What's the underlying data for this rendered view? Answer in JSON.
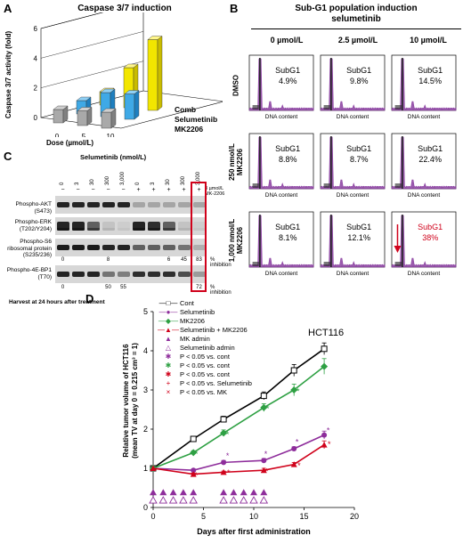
{
  "panel_A": {
    "letter": "A",
    "title": "Caspase 3/7 induction",
    "ylabel": "Caspase 3/7 activity (fold)",
    "xlabel": "Dose (µmol/L)",
    "yticks": [
      "0",
      "2",
      "4",
      "6"
    ],
    "xticks": [
      "0",
      "5",
      "10"
    ],
    "row_labels": [
      "Comb",
      "Selumetinib",
      "MK2206"
    ]
  },
  "panel_B": {
    "letter": "B",
    "title_line1": "Sub-G1 population induction",
    "title_line2": "selumetinib",
    "col_headers": [
      "0 µmol/L",
      "2.5 µmol/L",
      "10 µmol/L"
    ],
    "row_headers": [
      "DMSO",
      "250 nmol/L MK2206",
      "1,000 nmol/L MK2206"
    ],
    "xaxis_label": "DNA content",
    "subg1_label": "SubG1",
    "values": [
      [
        "4.9%",
        "9.8%",
        "14.5%"
      ],
      [
        "8.8%",
        "8.7%",
        "22.4%"
      ],
      [
        "8.1%",
        "12.1%",
        "38%"
      ]
    ],
    "highlight_color": "#d0021b",
    "hist_color": "#8a3fa0"
  },
  "panel_C": {
    "letter": "C",
    "header": "Selumetinib (nmol/L)",
    "doses": [
      "0",
      "3",
      "30",
      "300",
      "3,000",
      "0",
      "3",
      "30",
      "300",
      "3,000"
    ],
    "mk_signs": [
      "−",
      "−",
      "−",
      "−",
      "−",
      "+",
      "+",
      "+",
      "+",
      "+"
    ],
    "mk_label": "3 µmol/L MK-2206",
    "proteins": [
      "Phospho-AKT (S473)",
      "Phospho-ERK (T202/Y204)",
      "Phospho-S6 ribosomal protein (S235/236)",
      "Phospho-4E-BP1 (T70)"
    ],
    "inhibition_row1": [
      "0",
      "",
      "",
      "8",
      "",
      "",
      "",
      "6",
      "45",
      "83"
    ],
    "inhibition_row2": [
      "0",
      "",
      "",
      "50",
      "55",
      "",
      "",
      "",
      "",
      "72"
    ],
    "inhibition_label": "% inhibition",
    "footer": "Harvest at 24 hours after treatment"
  },
  "panel_D": {
    "letter": "D",
    "cell_line": "HCT116",
    "ylabel": "Relative tumor volume of HCT116 (mean TV at day 0 = 0.215 cm³ = 1)",
    "xlabel": "Days after first administration",
    "legend": [
      {
        "label": "Cont"
      },
      {
        "label": "Selumetinib"
      },
      {
        "label": "MK2206"
      },
      {
        "label": "Selumetinib + MK2206"
      },
      {
        "label": "MK admin"
      },
      {
        "label": "Selumetinib admin"
      },
      {
        "label": "P < 0.05 vs. cont"
      },
      {
        "label": "P < 0.05 vs. cont"
      },
      {
        "label": "P < 0.05 vs. cont"
      },
      {
        "label": "P < 0.05 vs. Selumetinib"
      },
      {
        "label": "P < 0.05 vs. MK"
      }
    ]
  },
  "chart_data": [
    {
      "type": "bar",
      "title": "Caspase 3/7 induction",
      "xlabel": "Dose (µmol/L)",
      "ylabel": "Caspase 3/7 activity (fold)",
      "ylim": [
        0,
        6
      ],
      "categories": [
        "0",
        "5",
        "10"
      ],
      "series": [
        {
          "name": "MK2206",
          "values": [
            1.0,
            1.1,
            1.2
          ]
        },
        {
          "name": "Selumetinib",
          "values": [
            1.0,
            1.8,
            1.9
          ]
        },
        {
          "name": "Comb",
          "values": [
            1.0,
            3.0,
            5.3
          ]
        }
      ]
    },
    {
      "type": "line",
      "title": "",
      "xlabel": "Days after first administration",
      "ylabel": "Relative tumor volume of HCT116 (mean TV at day 0 = 0.215 cm³ = 1)",
      "xlim": [
        0,
        20
      ],
      "ylim": [
        0,
        5
      ],
      "x": [
        0,
        4,
        7,
        11,
        14,
        17
      ],
      "series": [
        {
          "name": "Cont",
          "values": [
            1.0,
            1.75,
            2.25,
            2.85,
            3.5,
            4.05
          ],
          "errors": [
            0,
            0.05,
            0.08,
            0.1,
            0.15,
            0.15
          ]
        },
        {
          "name": "Selumetinib",
          "values": [
            1.0,
            0.95,
            1.15,
            1.2,
            1.5,
            1.85
          ],
          "errors": [
            0,
            0.03,
            0.05,
            0.05,
            0.05,
            0.1
          ]
        },
        {
          "name": "MK2206",
          "values": [
            1.0,
            1.4,
            1.9,
            2.55,
            3.0,
            3.6
          ],
          "errors": [
            0,
            0.05,
            0.08,
            0.1,
            0.15,
            0.2
          ]
        },
        {
          "name": "Selumetinib + MK2206",
          "values": [
            1.0,
            0.85,
            0.9,
            0.95,
            1.1,
            1.6
          ],
          "errors": [
            0,
            0.03,
            0.03,
            0.05,
            0.05,
            0.1
          ]
        }
      ],
      "mk_admin_days": [
        0,
        1,
        2,
        3,
        4,
        7,
        8,
        9,
        10,
        11
      ],
      "selumetinib_admin_days": [
        0,
        1,
        2,
        3,
        4,
        7,
        8,
        9,
        10,
        11
      ]
    }
  ]
}
